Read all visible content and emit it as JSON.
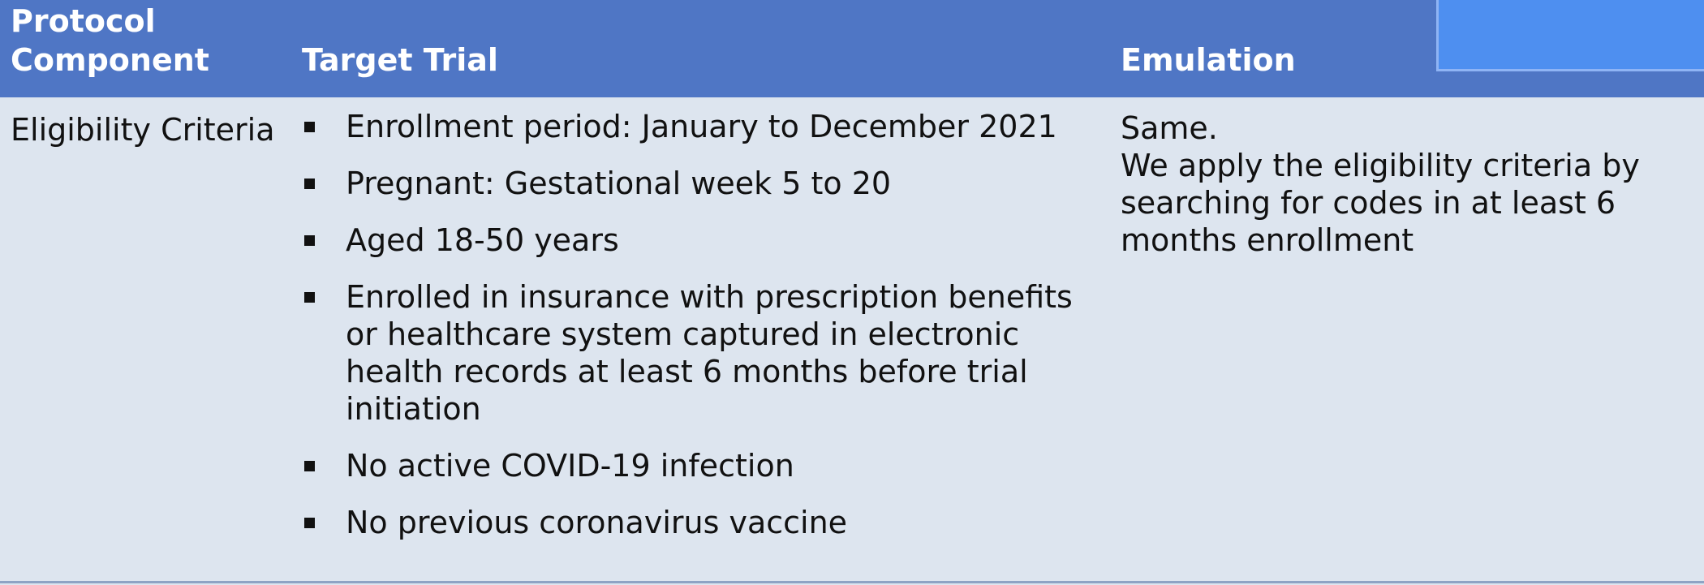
{
  "header": {
    "col1_label": "Protocol Component",
    "col2_label": "Target Trial",
    "col3_label": "Emulation"
  },
  "row": {
    "component": "Eligibility Criteria",
    "target_trial_items": [
      "Enrollment period: January to December 2021",
      "Pregnant: Gestational week 5 to 20",
      "Aged 18-50 years",
      "Enrolled in insurance with prescription benefits or healthcare system captured in electronic health records at least 6 months before trial initiation",
      "No active COVID-19 infection",
      "No previous coronavirus vaccine"
    ],
    "emulation_line1": "Same.",
    "emulation_line2": "We apply the eligibility criteria by searching for codes in at least 6 months enrollment"
  },
  "colors": {
    "header_bg": "#4f76c5",
    "body_bg": "#dde5ef",
    "overlay_box": "#4e8ff0"
  }
}
